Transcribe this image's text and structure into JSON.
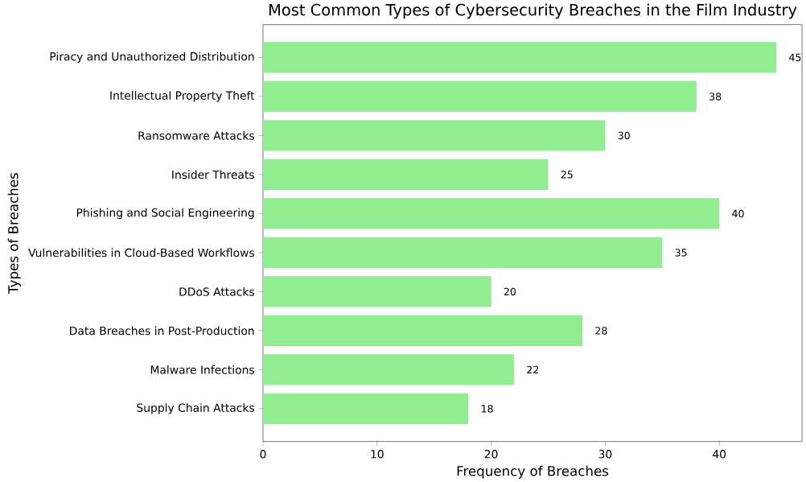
{
  "chart_data": {
    "type": "bar",
    "orientation": "horizontal",
    "title": "Most Common Types of Cybersecurity Breaches in the Film Industry",
    "xlabel": "Frequency of Breaches",
    "ylabel": "Types of Breaches",
    "categories": [
      "Piracy and Unauthorized Distribution",
      "Intellectual Property Theft",
      "Ransomware Attacks",
      "Insider Threats",
      "Phishing and Social Engineering",
      "Vulnerabilities in Cloud-Based Workflows",
      "DDoS Attacks",
      "Data Breaches in Post-Production",
      "Malware Infections",
      "Supply Chain Attacks"
    ],
    "values": [
      45,
      38,
      30,
      25,
      40,
      35,
      20,
      28,
      22,
      18
    ],
    "color": "#90ee90",
    "xlim": [
      0,
      47.25
    ],
    "xticks": [
      0,
      10,
      20,
      30,
      40
    ],
    "data_labels": true
  }
}
